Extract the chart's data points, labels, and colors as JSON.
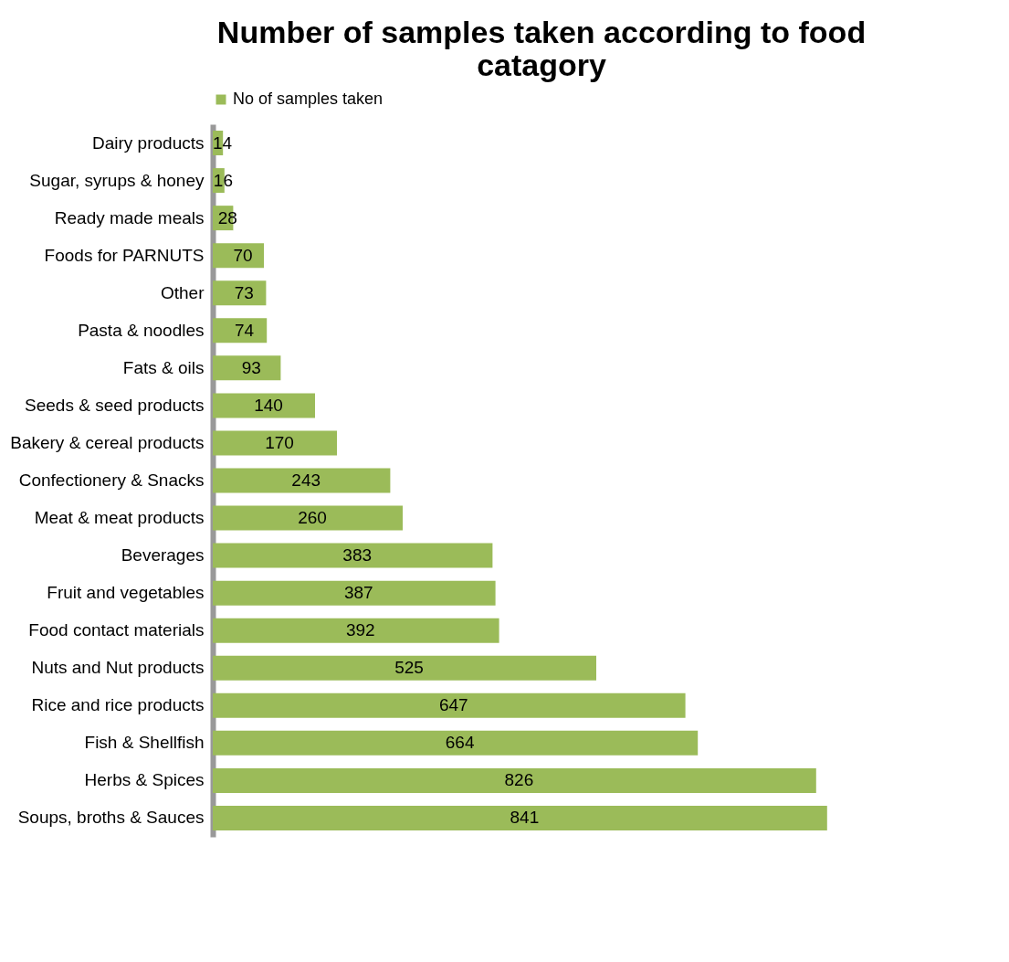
{
  "chart_data": {
    "type": "bar",
    "orientation": "horizontal",
    "title": "Number of samples taken according to food catagory",
    "categories": [
      "Dairy products",
      "Sugar, syrups & honey",
      "Ready made meals",
      "Foods for PARNUTS",
      "Other",
      "Pasta & noodles",
      "Fats & oils",
      "Seeds & seed products",
      "Bakery & cereal products",
      "Confectionery & Snacks",
      "Meat & meat products",
      "Beverages",
      "Fruit and vegetables",
      "Food contact materials",
      "Nuts and Nut products",
      "Rice and rice products",
      "Fish & Shellfish",
      "Herbs & Spices",
      "Soups, broths & Sauces"
    ],
    "series": [
      {
        "name": "No of samples taken",
        "color": "#9bbb59",
        "values": [
          14,
          16,
          28,
          70,
          73,
          74,
          93,
          140,
          170,
          243,
          260,
          383,
          387,
          392,
          525,
          647,
          664,
          826,
          841
        ]
      }
    ],
    "data_labels": true,
    "legend": "top",
    "tick_labels": "y"
  }
}
